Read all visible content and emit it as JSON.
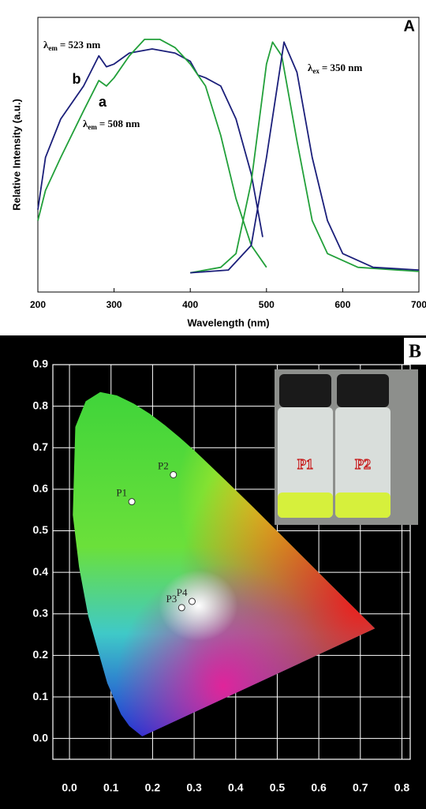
{
  "chart_data": [
    {
      "type": "line",
      "panel": "A",
      "x_label": "Wavelength (nm)",
      "y_label": "Relative Intensity (a.u.)",
      "xlim": [
        200,
        700
      ],
      "xticks": [
        200,
        300,
        400,
        500,
        600,
        700
      ],
      "ylim": [
        0,
        1
      ],
      "series": [
        {
          "name": "b",
          "color": "#1b1f7a",
          "x": [
            200,
            210,
            230,
            260,
            280,
            290,
            300,
            320,
            350,
            380,
            400,
            410,
            420,
            440,
            460,
            480,
            495
          ],
          "values": [
            0.3,
            0.49,
            0.63,
            0.75,
            0.86,
            0.82,
            0.83,
            0.87,
            0.885,
            0.87,
            0.84,
            0.79,
            0.78,
            0.75,
            0.63,
            0.43,
            0.2
          ]
        },
        {
          "name": "a",
          "color": "#22a03a",
          "x": [
            200,
            210,
            230,
            260,
            280,
            290,
            300,
            320,
            340,
            360,
            380,
            400,
            420,
            440,
            460,
            480,
            500
          ],
          "values": [
            0.26,
            0.37,
            0.49,
            0.66,
            0.77,
            0.75,
            0.78,
            0.86,
            0.92,
            0.92,
            0.89,
            0.83,
            0.75,
            0.57,
            0.34,
            0.17,
            0.09
          ]
        },
        {
          "color": "#22a03a",
          "x": [
            400,
            440,
            460,
            480,
            500,
            508,
            520,
            540,
            560,
            580,
            620,
            700
          ],
          "values": [
            0.07,
            0.09,
            0.14,
            0.4,
            0.83,
            0.91,
            0.86,
            0.55,
            0.26,
            0.14,
            0.09,
            0.075
          ]
        },
        {
          "color": "#1b1f7a",
          "x": [
            400,
            450,
            480,
            500,
            523,
            540,
            560,
            580,
            600,
            640,
            700
          ],
          "values": [
            0.07,
            0.08,
            0.17,
            0.49,
            0.91,
            0.8,
            0.49,
            0.26,
            0.14,
            0.09,
            0.08
          ]
        }
      ],
      "annotations": [
        {
          "symbol": "λ",
          "sub": "em",
          "text": "= 523 nm"
        },
        {
          "symbol": "λ",
          "sub": "em",
          "text": "= 508 nm"
        },
        {
          "symbol": "λ",
          "sub": "ex",
          "text": "= 350 nm"
        }
      ]
    },
    {
      "type": "scatter",
      "panel": "B",
      "xlim": [
        -0.04,
        0.82
      ],
      "ylim": [
        -0.05,
        0.9
      ],
      "xticks": [
        {
          "value": 0,
          "label": "0.0"
        },
        0.1,
        0.2,
        0.3,
        0.4,
        0.5,
        0.6,
        0.7,
        0.8
      ],
      "yticks": [
        {
          "value": 0,
          "label": "0.0"
        },
        0.1,
        0.2,
        0.3,
        0.4,
        0.5,
        0.6,
        0.7,
        0.8,
        0.9
      ],
      "grid": true,
      "series": [
        {
          "color": "#ffffff",
          "labels": [
            "P1",
            "P2",
            "P3",
            "P4"
          ],
          "x": [
            0.15,
            0.25,
            0.27,
            0.295
          ],
          "values": [
            0.57,
            0.635,
            0.315,
            0.33
          ]
        }
      ],
      "inset_labels": [
        "P1",
        "P2"
      ]
    }
  ]
}
